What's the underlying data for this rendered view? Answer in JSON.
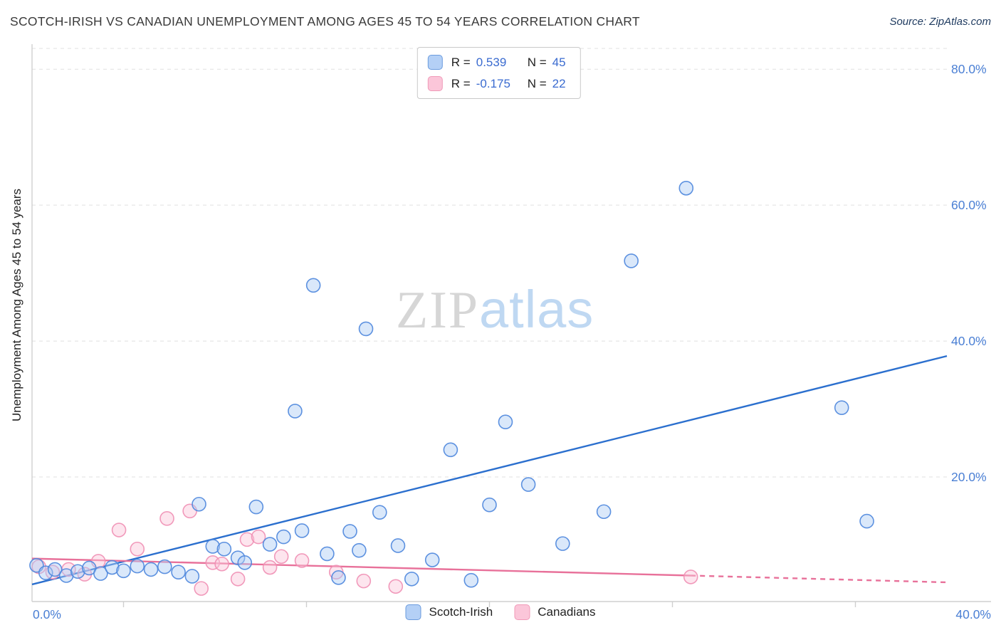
{
  "header": {
    "title": "SCOTCH-IRISH VS CANADIAN UNEMPLOYMENT AMONG AGES 45 TO 54 YEARS CORRELATION CHART",
    "source": "Source: ZipAtlas.com"
  },
  "watermark": {
    "zip": "ZIP",
    "atlas": "atlas"
  },
  "axes": {
    "y_label": "Unemployment Among Ages 45 to 54 years",
    "x_min_label": "0.0%",
    "x_max_label": "40.0%",
    "y_ticks": [
      {
        "value": 80,
        "label": "80.0%"
      },
      {
        "value": 60,
        "label": "60.0%"
      },
      {
        "value": 40,
        "label": "40.0%"
      },
      {
        "value": 20,
        "label": "20.0%"
      }
    ]
  },
  "legend_box": {
    "rows": [
      {
        "series": "Scotch-Irish",
        "r_label": "R =",
        "r_value": "0.539",
        "n_label": "N =",
        "n_value": "45"
      },
      {
        "series": "Canadians",
        "r_label": "R =",
        "r_value": "-0.175",
        "n_label": "N =",
        "n_value": "22"
      }
    ]
  },
  "bottom_legend": {
    "items": [
      {
        "label": "Scotch-Irish",
        "fill": "#b4d0f6",
        "edge": "#6a9bdd"
      },
      {
        "label": "Canadians",
        "fill": "#fbc6d9",
        "edge": "#f09ab8"
      }
    ]
  },
  "chart_data": {
    "type": "scatter",
    "title": "Scotch-Irish vs Canadian Unemployment Among Ages 45 to 54 Years",
    "xlim": [
      0,
      40
    ],
    "ylim": [
      0,
      84
    ],
    "y_gridlines": [
      20,
      40,
      60,
      80
    ],
    "x_tick_marks": [
      4,
      12,
      20,
      28,
      36
    ],
    "grid": true,
    "legend_position": "bottom",
    "series": [
      {
        "name": "Scotch-Irish",
        "fill": "#aecdf5",
        "edge": "#4c86dd",
        "points": [
          [
            0.2,
            7.0
          ],
          [
            0.6,
            5.9
          ],
          [
            1.0,
            6.4
          ],
          [
            1.5,
            5.5
          ],
          [
            2.0,
            6.1
          ],
          [
            2.5,
            6.6
          ],
          [
            3.0,
            5.8
          ],
          [
            3.5,
            6.7
          ],
          [
            4.0,
            6.2
          ],
          [
            4.6,
            6.9
          ],
          [
            5.2,
            6.4
          ],
          [
            5.8,
            6.8
          ],
          [
            6.4,
            6.0
          ],
          [
            7.0,
            5.4
          ],
          [
            7.3,
            16.0
          ],
          [
            7.9,
            9.8
          ],
          [
            8.4,
            9.4
          ],
          [
            9.0,
            8.1
          ],
          [
            9.3,
            7.4
          ],
          [
            9.8,
            15.6
          ],
          [
            10.4,
            10.1
          ],
          [
            11.0,
            11.2
          ],
          [
            11.5,
            29.7
          ],
          [
            11.8,
            12.1
          ],
          [
            12.3,
            48.2
          ],
          [
            12.9,
            8.7
          ],
          [
            13.4,
            5.2
          ],
          [
            13.9,
            12.0
          ],
          [
            14.3,
            9.2
          ],
          [
            14.6,
            41.8
          ],
          [
            15.2,
            14.8
          ],
          [
            16.0,
            9.9
          ],
          [
            16.6,
            5.0
          ],
          [
            17.5,
            7.8
          ],
          [
            18.3,
            24.0
          ],
          [
            19.2,
            4.8
          ],
          [
            20.0,
            15.9
          ],
          [
            20.7,
            28.1
          ],
          [
            21.7,
            18.9
          ],
          [
            23.2,
            10.2
          ],
          [
            25.0,
            14.9
          ],
          [
            26.2,
            51.8
          ],
          [
            28.6,
            62.5
          ],
          [
            35.4,
            30.2
          ],
          [
            36.5,
            13.5
          ]
        ]
      },
      {
        "name": "Canadians",
        "fill": "#fbc6d9",
        "edge": "#f08fb4",
        "points": [
          [
            0.3,
            6.8
          ],
          [
            0.9,
            6.0
          ],
          [
            1.6,
            6.4
          ],
          [
            2.3,
            5.7
          ],
          [
            2.9,
            7.6
          ],
          [
            3.8,
            12.2
          ],
          [
            4.6,
            9.4
          ],
          [
            5.9,
            13.9
          ],
          [
            6.9,
            15.0
          ],
          [
            7.4,
            3.6
          ],
          [
            7.9,
            7.4
          ],
          [
            8.3,
            7.2
          ],
          [
            9.0,
            5.0
          ],
          [
            9.4,
            10.8
          ],
          [
            9.9,
            11.2
          ],
          [
            10.4,
            6.7
          ],
          [
            10.9,
            8.3
          ],
          [
            11.8,
            7.7
          ],
          [
            13.3,
            6.0
          ],
          [
            14.5,
            4.7
          ],
          [
            15.9,
            3.9
          ],
          [
            28.8,
            5.3
          ]
        ]
      }
    ],
    "trend_lines": [
      {
        "series": "Scotch-Irish",
        "color": "#2b6fce",
        "style": "solid",
        "start": {
          "x": 0,
          "y": 4.2
        },
        "end": {
          "x": 40,
          "y": 37.8
        }
      },
      {
        "series": "Canadians",
        "color": "#e8719a",
        "style": "solid",
        "start": {
          "x": 0,
          "y": 8.0
        },
        "end": {
          "x": 28.8,
          "y": 5.5
        }
      },
      {
        "series": "Canadians",
        "color": "#e8719a",
        "style": "dashed",
        "start": {
          "x": 28.8,
          "y": 5.5
        },
        "end": {
          "x": 40,
          "y": 4.5
        }
      }
    ]
  },
  "colors": {
    "accent_blue": "#3a6bd0",
    "tick_label": "#4a7fd4",
    "grid": "#e0e0e0",
    "axis": "#cfcfcf",
    "title": "#3a3a3a"
  }
}
